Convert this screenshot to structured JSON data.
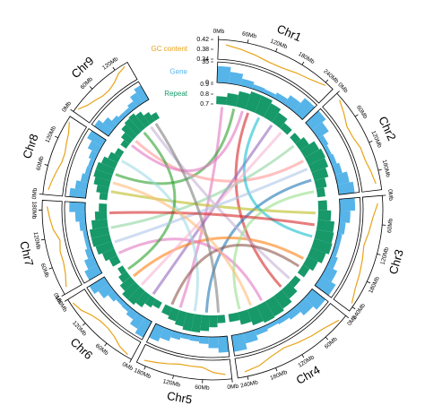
{
  "chart_data": {
    "type": "circos",
    "tracks": {
      "gc": {
        "label": "GC content",
        "color": "#e8a317",
        "ylim": [
          0.34,
          0.42
        ],
        "yticks": [
          0.34,
          0.38,
          0.42
        ]
      },
      "gene": {
        "label": "Gene",
        "color": "#56b4e9",
        "ylim": [
          0,
          35
        ],
        "yticks": [
          0,
          35
        ]
      },
      "repeat": {
        "label": "Repeat",
        "color": "#17996a",
        "ylim": [
          0.7,
          0.9
        ],
        "yticks": [
          0.7,
          0.8,
          0.9
        ]
      }
    },
    "chromosomes": [
      {
        "name": "Chr1",
        "length": 260,
        "ticks": [
          {
            "value": 0,
            "label": "0Mb"
          },
          {
            "value": 60,
            "label": "60Mb"
          },
          {
            "value": 120,
            "label": "120Mb"
          },
          {
            "value": 180,
            "label": "180Mb"
          },
          {
            "value": 240,
            "label": "240Mb"
          }
        ],
        "gc": [
          0.4,
          0.39,
          0.38,
          0.37,
          0.37,
          0.38,
          0.39,
          0.41
        ],
        "gene": [
          28,
          20,
          12,
          8,
          7,
          11,
          19,
          30
        ],
        "repeat": [
          0.78,
          0.82,
          0.86,
          0.89,
          0.89,
          0.86,
          0.82,
          0.77
        ]
      },
      {
        "name": "Chr2",
        "length": 220,
        "ticks": [
          {
            "value": 0,
            "label": "0Mb"
          },
          {
            "value": 60,
            "label": "60Mb"
          },
          {
            "value": 120,
            "label": "120Mb"
          },
          {
            "value": 180,
            "label": "180Mb"
          }
        ],
        "gc": [
          0.41,
          0.39,
          0.37,
          0.37,
          0.38,
          0.38,
          0.39,
          0.4
        ],
        "gene": [
          30,
          22,
          10,
          7,
          9,
          13,
          21,
          27
        ],
        "repeat": [
          0.77,
          0.81,
          0.87,
          0.89,
          0.88,
          0.85,
          0.81,
          0.78
        ]
      },
      {
        "name": "Chr3",
        "length": 250,
        "ticks": [
          {
            "value": 0,
            "label": "0Mb"
          },
          {
            "value": 60,
            "label": "60Mb"
          },
          {
            "value": 120,
            "label": "120Mb"
          },
          {
            "value": 180,
            "label": "180Mb"
          },
          {
            "value": 240,
            "label": "240Mb"
          }
        ],
        "gc": [
          0.4,
          0.38,
          0.37,
          0.36,
          0.37,
          0.38,
          0.39,
          0.41
        ],
        "gene": [
          26,
          18,
          11,
          8,
          8,
          12,
          20,
          29
        ],
        "repeat": [
          0.79,
          0.83,
          0.87,
          0.88,
          0.89,
          0.86,
          0.82,
          0.78
        ]
      },
      {
        "name": "Chr4",
        "length": 260,
        "ticks": [
          {
            "value": 0,
            "label": "0Mb"
          },
          {
            "value": 60,
            "label": "60Mb"
          },
          {
            "value": 120,
            "label": "120Mb"
          },
          {
            "value": 180,
            "label": "180Mb"
          },
          {
            "value": 240,
            "label": "240Mb"
          }
        ],
        "gc": [
          0.41,
          0.39,
          0.38,
          0.37,
          0.36,
          0.37,
          0.39,
          0.4
        ],
        "gene": [
          29,
          21,
          13,
          9,
          7,
          10,
          18,
          28
        ],
        "repeat": [
          0.77,
          0.82,
          0.86,
          0.88,
          0.89,
          0.87,
          0.83,
          0.78
        ]
      },
      {
        "name": "Chr5",
        "length": 200,
        "ticks": [
          {
            "value": 0,
            "label": "0Mb"
          },
          {
            "value": 60,
            "label": "60Mb"
          },
          {
            "value": 120,
            "label": "120Mb"
          },
          {
            "value": 180,
            "label": "180Mb"
          }
        ],
        "gc": [
          0.4,
          0.39,
          0.37,
          0.37,
          0.37,
          0.38,
          0.39,
          0.4
        ],
        "gene": [
          27,
          19,
          12,
          9,
          8,
          12,
          19,
          26
        ],
        "repeat": [
          0.78,
          0.82,
          0.86,
          0.88,
          0.88,
          0.85,
          0.82,
          0.79
        ]
      },
      {
        "name": "Chr6",
        "length": 180,
        "ticks": [
          {
            "value": 0,
            "label": "0Mb"
          },
          {
            "value": 60,
            "label": "60Mb"
          },
          {
            "value": 120,
            "label": "120Mb"
          },
          {
            "value": 180,
            "label": "180Mb"
          }
        ],
        "gc": [
          0.41,
          0.4,
          0.38,
          0.37,
          0.37,
          0.38,
          0.4,
          0.41
        ],
        "gene": [
          31,
          23,
          14,
          9,
          8,
          13,
          22,
          30
        ],
        "repeat": [
          0.77,
          0.8,
          0.85,
          0.88,
          0.88,
          0.84,
          0.8,
          0.76
        ]
      },
      {
        "name": "Chr7",
        "length": 200,
        "ticks": [
          {
            "value": 0,
            "label": "0Mb"
          },
          {
            "value": 60,
            "label": "60Mb"
          },
          {
            "value": 120,
            "label": "120Mb"
          },
          {
            "value": 180,
            "label": "180Mb"
          }
        ],
        "gc": [
          0.4,
          0.38,
          0.37,
          0.37,
          0.36,
          0.38,
          0.39,
          0.4
        ],
        "gene": [
          25,
          18,
          11,
          7,
          7,
          11,
          17,
          27
        ],
        "repeat": [
          0.79,
          0.83,
          0.87,
          0.89,
          0.89,
          0.86,
          0.82,
          0.78
        ]
      },
      {
        "name": "Chr8",
        "length": 170,
        "ticks": [
          {
            "value": 0,
            "label": "0Mb"
          },
          {
            "value": 60,
            "label": "60Mb"
          },
          {
            "value": 120,
            "label": "120Mb"
          }
        ],
        "gc": [
          0.4,
          0.39,
          0.38,
          0.37,
          0.37,
          0.38,
          0.39,
          0.41
        ],
        "gene": [
          28,
          20,
          13,
          9,
          8,
          12,
          20,
          29
        ],
        "repeat": [
          0.78,
          0.82,
          0.86,
          0.88,
          0.88,
          0.85,
          0.81,
          0.77
        ]
      },
      {
        "name": "Chr9",
        "length": 150,
        "ticks": [
          {
            "value": 0,
            "label": "0Mb"
          },
          {
            "value": 60,
            "label": "60Mb"
          },
          {
            "value": 120,
            "label": "120Mb"
          }
        ],
        "gc": [
          0.41,
          0.39,
          0.38,
          0.37,
          0.37,
          0.38,
          0.4,
          0.41
        ],
        "gene": [
          30,
          21,
          12,
          8,
          8,
          12,
          21,
          28
        ],
        "repeat": [
          0.77,
          0.81,
          0.86,
          0.88,
          0.89,
          0.86,
          0.81,
          0.77
        ]
      }
    ],
    "links": [
      {
        "source": {
          "chr": "Chr1",
          "pos": 20
        },
        "target": {
          "chr": "Chr5",
          "pos": 150
        },
        "color": "#e377c2"
      },
      {
        "source": {
          "chr": "Chr1",
          "pos": 60
        },
        "target": {
          "chr": "Chr8",
          "pos": 90
        },
        "color": "#2ca02c"
      },
      {
        "source": {
          "chr": "Chr1",
          "pos": 110
        },
        "target": {
          "chr": "Chr4",
          "pos": 60
        },
        "color": "#d62728"
      },
      {
        "source": {
          "chr": "Chr1",
          "pos": 200
        },
        "target": {
          "chr": "Chr6",
          "pos": 40
        },
        "color": "#9467bd"
      },
      {
        "source": {
          "chr": "Chr2",
          "pos": 30
        },
        "target": {
          "chr": "Chr7",
          "pos": 120
        },
        "color": "#8fd3a0"
      },
      {
        "source": {
          "chr": "Chr2",
          "pos": 90
        },
        "target": {
          "chr": "Chr9",
          "pos": 40
        },
        "color": "#ff9896"
      },
      {
        "source": {
          "chr": "Chr2",
          "pos": 160
        },
        "target": {
          "chr": "Chr5",
          "pos": 60
        },
        "color": "#1f77b4"
      },
      {
        "source": {
          "chr": "Chr3",
          "pos": 40
        },
        "target": {
          "chr": "Chr8",
          "pos": 30
        },
        "color": "#bcbd22"
      },
      {
        "source": {
          "chr": "Chr3",
          "pos": 120
        },
        "target": {
          "chr": "Chr1",
          "pos": 150
        },
        "color": "#17becf"
      },
      {
        "source": {
          "chr": "Chr3",
          "pos": 200
        },
        "target": {
          "chr": "Chr6",
          "pos": 130
        },
        "color": "#ff7f0e"
      },
      {
        "source": {
          "chr": "Chr4",
          "pos": 20
        },
        "target": {
          "chr": "Chr9",
          "pos": 110
        },
        "color": "#c5b0d5"
      },
      {
        "source": {
          "chr": "Chr4",
          "pos": 140
        },
        "target": {
          "chr": "Chr7",
          "pos": 30
        },
        "color": "#e377c2"
      },
      {
        "source": {
          "chr": "Chr4",
          "pos": 220
        },
        "target": {
          "chr": "Chr2",
          "pos": 200
        },
        "color": "#98df8a"
      },
      {
        "source": {
          "chr": "Chr5",
          "pos": 100
        },
        "target": {
          "chr": "Chr8",
          "pos": 140
        },
        "color": "#9edae5"
      },
      {
        "source": {
          "chr": "Chr5",
          "pos": 180
        },
        "target": {
          "chr": "Chr3",
          "pos": 230
        },
        "color": "#8c564b"
      },
      {
        "source": {
          "chr": "Chr6",
          "pos": 90
        },
        "target": {
          "chr": "Chr1",
          "pos": 240
        },
        "color": "#f7b6d2"
      },
      {
        "source": {
          "chr": "Chr6",
          "pos": 160
        },
        "target": {
          "chr": "Chr9",
          "pos": 80
        },
        "color": "#2ca02c"
      },
      {
        "source": {
          "chr": "Chr7",
          "pos": 70
        },
        "target": {
          "chr": "Chr2",
          "pos": 120
        },
        "color": "#aec7e8"
      },
      {
        "source": {
          "chr": "Chr7",
          "pos": 170
        },
        "target": {
          "chr": "Chr3",
          "pos": 80
        },
        "color": "#d62728"
      },
      {
        "source": {
          "chr": "Chr8",
          "pos": 60
        },
        "target": {
          "chr": "Chr4",
          "pos": 180
        },
        "color": "#ffbb78"
      },
      {
        "source": {
          "chr": "Chr9",
          "pos": 20
        },
        "target": {
          "chr": "Chr1",
          "pos": 90
        },
        "color": "#e377c2"
      },
      {
        "source": {
          "chr": "Chr9",
          "pos": 130
        },
        "target": {
          "chr": "Chr5",
          "pos": 20
        },
        "color": "#7f7f7f"
      }
    ]
  }
}
